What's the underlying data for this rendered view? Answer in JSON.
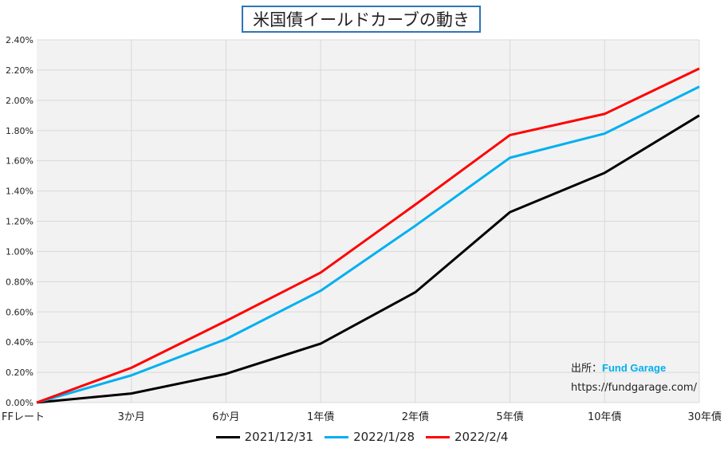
{
  "chart_data": {
    "type": "line",
    "title": "米国債イールドカーブの動き",
    "categories": [
      "FFレート",
      "3か月",
      "6か月",
      "1年債",
      "2年債",
      "5年債",
      "10年債",
      "30年債"
    ],
    "series": [
      {
        "name": "2021/12/31",
        "color": "#000000",
        "values": [
          0.0,
          0.06,
          0.19,
          0.39,
          0.73,
          1.26,
          1.52,
          1.9
        ]
      },
      {
        "name": "2022/1/28",
        "color": "#00b0f0",
        "values": [
          0.0,
          0.18,
          0.42,
          0.74,
          1.17,
          1.62,
          1.78,
          2.09
        ]
      },
      {
        "name": "2022/2/4",
        "color": "#ff0000",
        "values": [
          0.0,
          0.23,
          0.54,
          0.86,
          1.31,
          1.77,
          1.91,
          2.21
        ]
      }
    ],
    "y_ticks": [
      "0.00%",
      "0.20%",
      "0.40%",
      "0.60%",
      "0.80%",
      "1.00%",
      "1.20%",
      "1.40%",
      "1.60%",
      "1.80%",
      "2.00%",
      "2.20%",
      "2.40%"
    ],
    "ylim": [
      0,
      2.4
    ],
    "xlabel": "",
    "ylabel": "",
    "grid": true,
    "legend_position": "bottom",
    "plot_background": "#f2f2f2",
    "grid_color": "#d9d9d9"
  },
  "source": {
    "label": "出所：",
    "name": "Fund Garage",
    "url": "https://fundgarage.com/"
  }
}
